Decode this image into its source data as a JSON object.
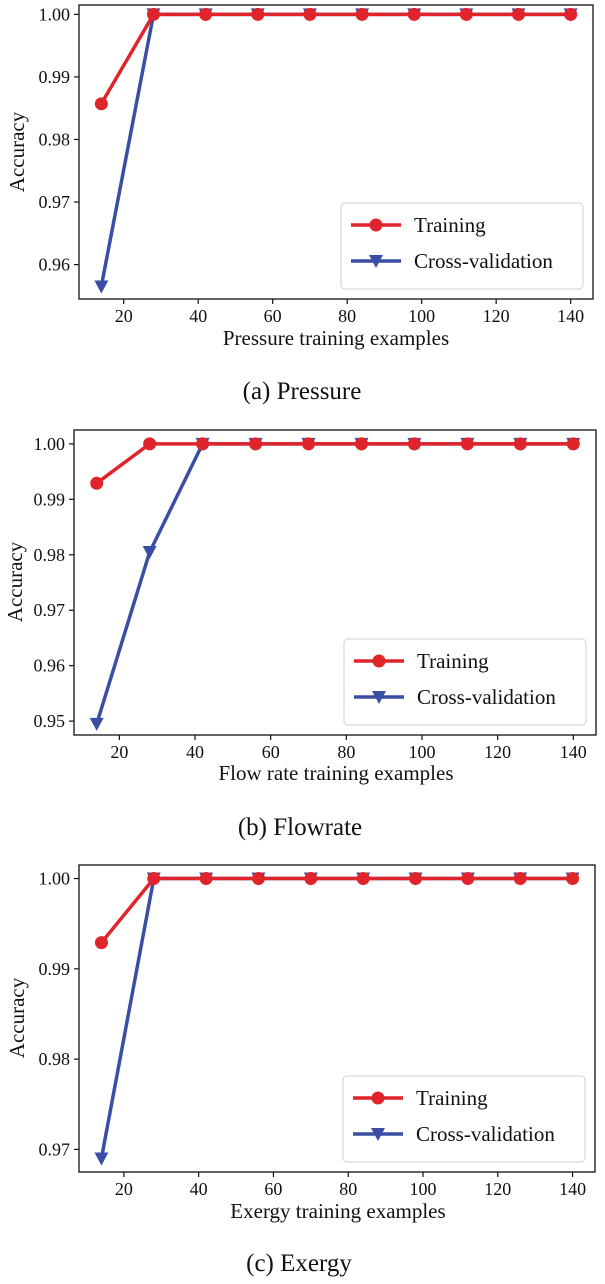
{
  "colors": {
    "training": "#e0242b",
    "cross_validation": "#3a4fa3",
    "axis": "#111111"
  },
  "chart_data": [
    {
      "type": "line",
      "panel_id": "pressure",
      "caption": "(a) Pressure",
      "xlabel": "Pressure training examples",
      "ylabel": "Accuracy",
      "xlim": [
        8,
        146
      ],
      "ylim": [
        0.9545,
        1.0015
      ],
      "xticks": [
        20,
        40,
        60,
        80,
        100,
        120,
        140
      ],
      "xtick_labels": [
        "20",
        "40",
        "60",
        "80",
        "100",
        "120",
        "140"
      ],
      "yticks": [
        0.96,
        0.97,
        0.98,
        0.99,
        1.0
      ],
      "ytick_labels": [
        "0.96",
        "0.97",
        "0.98",
        "0.99",
        "1.00"
      ],
      "x": [
        14,
        28,
        42,
        56,
        70,
        84,
        98,
        112,
        126,
        140
      ],
      "series": [
        {
          "name": "Training",
          "marker": "circle",
          "values": [
            0.9857,
            1.0,
            1.0,
            1.0,
            1.0,
            1.0,
            1.0,
            1.0,
            1.0,
            1.0
          ]
        },
        {
          "name": "Cross-validation",
          "marker": "triangle-down",
          "values": [
            0.9565,
            1.0,
            1.0,
            1.0,
            1.0,
            1.0,
            1.0,
            1.0,
            1.0,
            1.0
          ]
        }
      ],
      "legend": "lower right",
      "grid": false
    },
    {
      "type": "line",
      "panel_id": "flowrate",
      "caption": "(b) Flowrate",
      "xlabel": "Flow rate training examples",
      "ylabel": "Accuracy",
      "xlim": [
        8,
        146
      ],
      "ylim": [
        0.9475,
        1.0025
      ],
      "xticks": [
        20,
        40,
        60,
        80,
        100,
        120,
        140
      ],
      "xtick_labels": [
        "20",
        "40",
        "60",
        "80",
        "100",
        "120",
        "140"
      ],
      "yticks": [
        0.95,
        0.96,
        0.97,
        0.98,
        0.99,
        1.0
      ],
      "ytick_labels": [
        "0.95",
        "0.96",
        "0.97",
        "0.98",
        "0.99",
        "1.00"
      ],
      "x": [
        14,
        28,
        42,
        56,
        70,
        84,
        98,
        112,
        126,
        140
      ],
      "series": [
        {
          "name": "Training",
          "marker": "circle",
          "values": [
            0.9929,
            1.0,
            1.0,
            1.0,
            1.0,
            1.0,
            1.0,
            1.0,
            1.0,
            1.0
          ]
        },
        {
          "name": "Cross-validation",
          "marker": "triangle-down",
          "values": [
            0.9495,
            0.9805,
            1.0,
            1.0,
            1.0,
            1.0,
            1.0,
            1.0,
            1.0,
            1.0
          ]
        }
      ],
      "legend": "lower right",
      "grid": false
    },
    {
      "type": "line",
      "panel_id": "exergy",
      "caption": "(c) Exergy",
      "xlabel": "Exergy training examples",
      "ylabel": "Accuracy",
      "xlim": [
        8,
        146
      ],
      "ylim": [
        0.9675,
        1.0015
      ],
      "xticks": [
        20,
        40,
        60,
        80,
        100,
        120,
        140
      ],
      "xtick_labels": [
        "20",
        "40",
        "60",
        "80",
        "100",
        "120",
        "140"
      ],
      "yticks": [
        0.97,
        0.98,
        0.99,
        1.0
      ],
      "ytick_labels": [
        "0.97",
        "0.98",
        "0.99",
        "1.00"
      ],
      "x": [
        14,
        28,
        42,
        56,
        70,
        84,
        98,
        112,
        126,
        140
      ],
      "series": [
        {
          "name": "Training",
          "marker": "circle",
          "values": [
            0.9929,
            1.0,
            1.0,
            1.0,
            1.0,
            1.0,
            1.0,
            1.0,
            1.0,
            1.0
          ]
        },
        {
          "name": "Cross-validation",
          "marker": "triangle-down",
          "values": [
            0.969,
            1.0,
            1.0,
            1.0,
            1.0,
            1.0,
            1.0,
            1.0,
            1.0,
            1.0
          ]
        }
      ],
      "legend": "lower right",
      "grid": false
    }
  ]
}
